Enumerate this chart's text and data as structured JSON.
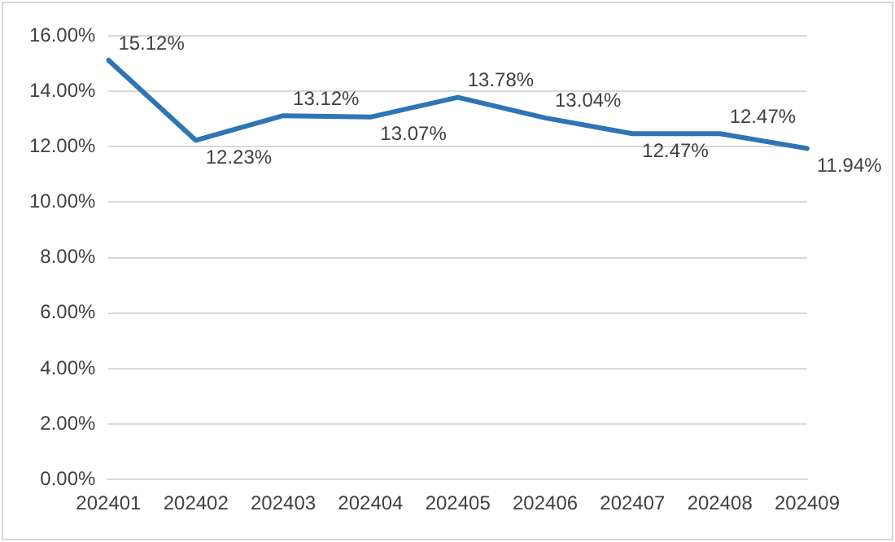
{
  "chart_data": {
    "type": "line",
    "categories": [
      "202401",
      "202402",
      "202403",
      "202404",
      "202405",
      "202406",
      "202407",
      "202408",
      "202409"
    ],
    "series": [
      {
        "color": "#2e75b6",
        "values": [
          15.12,
          12.23,
          13.12,
          13.07,
          13.78,
          13.04,
          12.47,
          12.47,
          11.94
        ],
        "value_labels": [
          "15.12%",
          "12.23%",
          "13.12%",
          "13.07%",
          "13.78%",
          "13.04%",
          "12.47%",
          "12.47%",
          "11.94%"
        ]
      }
    ],
    "ylim": [
      0,
      16
    ],
    "yticks": [
      {
        "value": 0,
        "label": "0.00%"
      },
      {
        "value": 2,
        "label": "2.00%"
      },
      {
        "value": 4,
        "label": "4.00%"
      },
      {
        "value": 6,
        "label": "6.00%"
      },
      {
        "value": 8,
        "label": "8.00%"
      },
      {
        "value": 10,
        "label": "10.00%"
      },
      {
        "value": 12,
        "label": "12.00%"
      },
      {
        "value": 14,
        "label": "14.00%"
      },
      {
        "value": 16,
        "label": "16.00%"
      }
    ],
    "grid": "y",
    "marker": "none",
    "line_style": "solid",
    "legend": false
  }
}
